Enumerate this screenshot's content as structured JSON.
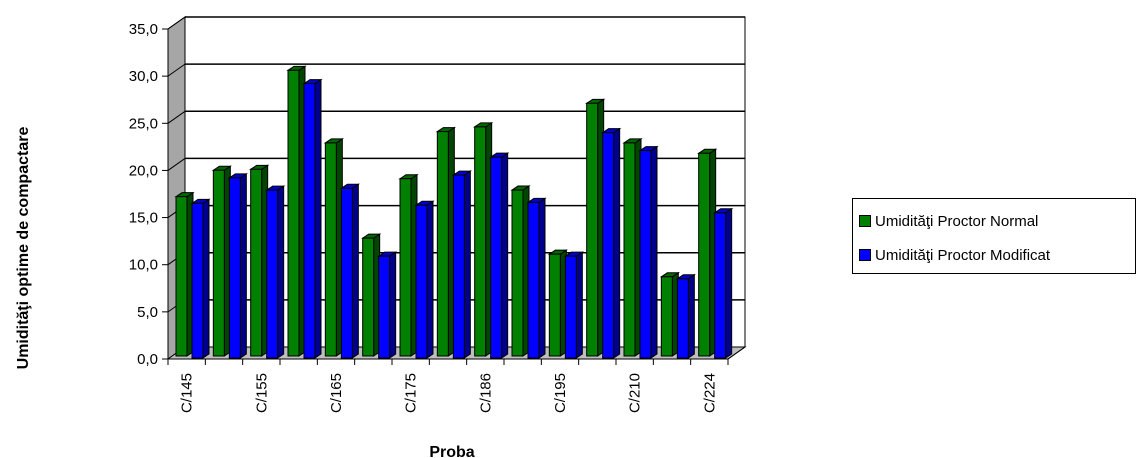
{
  "chart_data": {
    "type": "bar",
    "title": "",
    "xlabel": "Proba",
    "ylabel": "Umidităţi optime de compactare",
    "ylim": [
      0,
      35
    ],
    "ytick_step": 5,
    "ytick_labels": [
      "0,0",
      "5,0",
      "10,0",
      "15,0",
      "20,0",
      "25,0",
      "30,0",
      "35,0"
    ],
    "categories": [
      "C/145",
      "",
      "C/155",
      "",
      "C/165",
      "",
      "C/175",
      "",
      "C/186",
      "",
      "C/195",
      "",
      "C/210",
      "",
      "C/224"
    ],
    "grid": true,
    "three_d": true,
    "legend_position": "right",
    "series": [
      {
        "name": "Umidităţi Proctor Normal",
        "color": "#008000",
        "values": [
          16.9,
          19.7,
          19.8,
          30.3,
          22.6,
          12.5,
          18.8,
          23.8,
          24.3,
          17.6,
          10.8,
          26.8,
          22.6,
          8.4,
          21.5
        ]
      },
      {
        "name": "Umidităţi Proctor Modificat",
        "color": "#0000ff",
        "values": [
          16.4,
          19.1,
          17.8,
          29.1,
          18.0,
          10.8,
          16.2,
          19.4,
          21.3,
          16.5,
          10.8,
          23.9,
          22.0,
          8.4,
          15.4
        ]
      }
    ]
  }
}
